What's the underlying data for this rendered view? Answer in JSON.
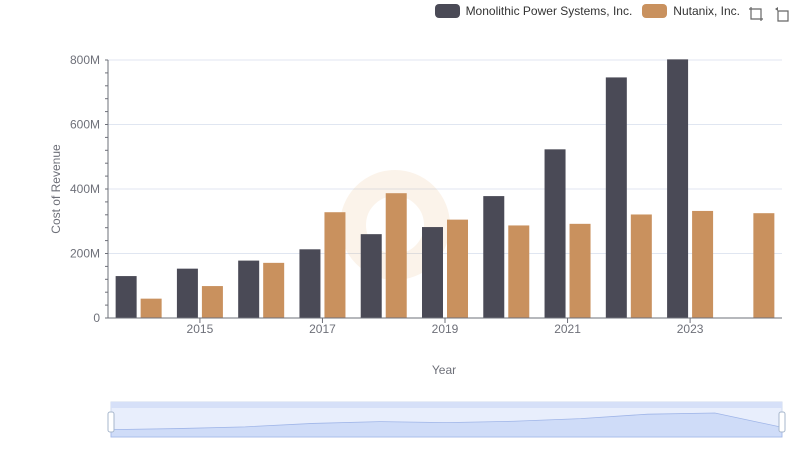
{
  "chart_data": {
    "type": "bar",
    "xlabel": "Year",
    "ylabel": "Cost of Revenue",
    "ylim": [
      0,
      800000000
    ],
    "yticks": [
      0,
      200000000,
      400000000,
      600000000,
      800000000
    ],
    "ytick_labels": [
      "0",
      "200M",
      "400M",
      "600M",
      "800M"
    ],
    "categories": [
      "2014",
      "2015",
      "2016",
      "2017",
      "2018",
      "2019",
      "2020",
      "2021",
      "2022",
      "2023",
      "2024"
    ],
    "xtick_labels": [
      "2015",
      "2017",
      "2019",
      "2021",
      "2023"
    ],
    "grid": true,
    "legend_position": "top-right",
    "series": [
      {
        "name": "Monolithic Power Systems, Inc.",
        "color": "#4a4a56",
        "values": [
          130000000,
          153000000,
          178000000,
          213000000,
          260000000,
          282000000,
          378000000,
          523000000,
          746000000,
          802000000,
          null
        ]
      },
      {
        "name": "Nutanix, Inc.",
        "color": "#c9915e",
        "values": [
          60000000,
          99000000,
          171000000,
          328000000,
          387000000,
          305000000,
          287000000,
          292000000,
          321000000,
          332000000,
          325000000
        ]
      }
    ]
  },
  "toolbox": {
    "icons": [
      "zoom-icon",
      "restore-icon"
    ]
  },
  "datazoom": {
    "start_percent": 0,
    "end_percent": 100
  }
}
